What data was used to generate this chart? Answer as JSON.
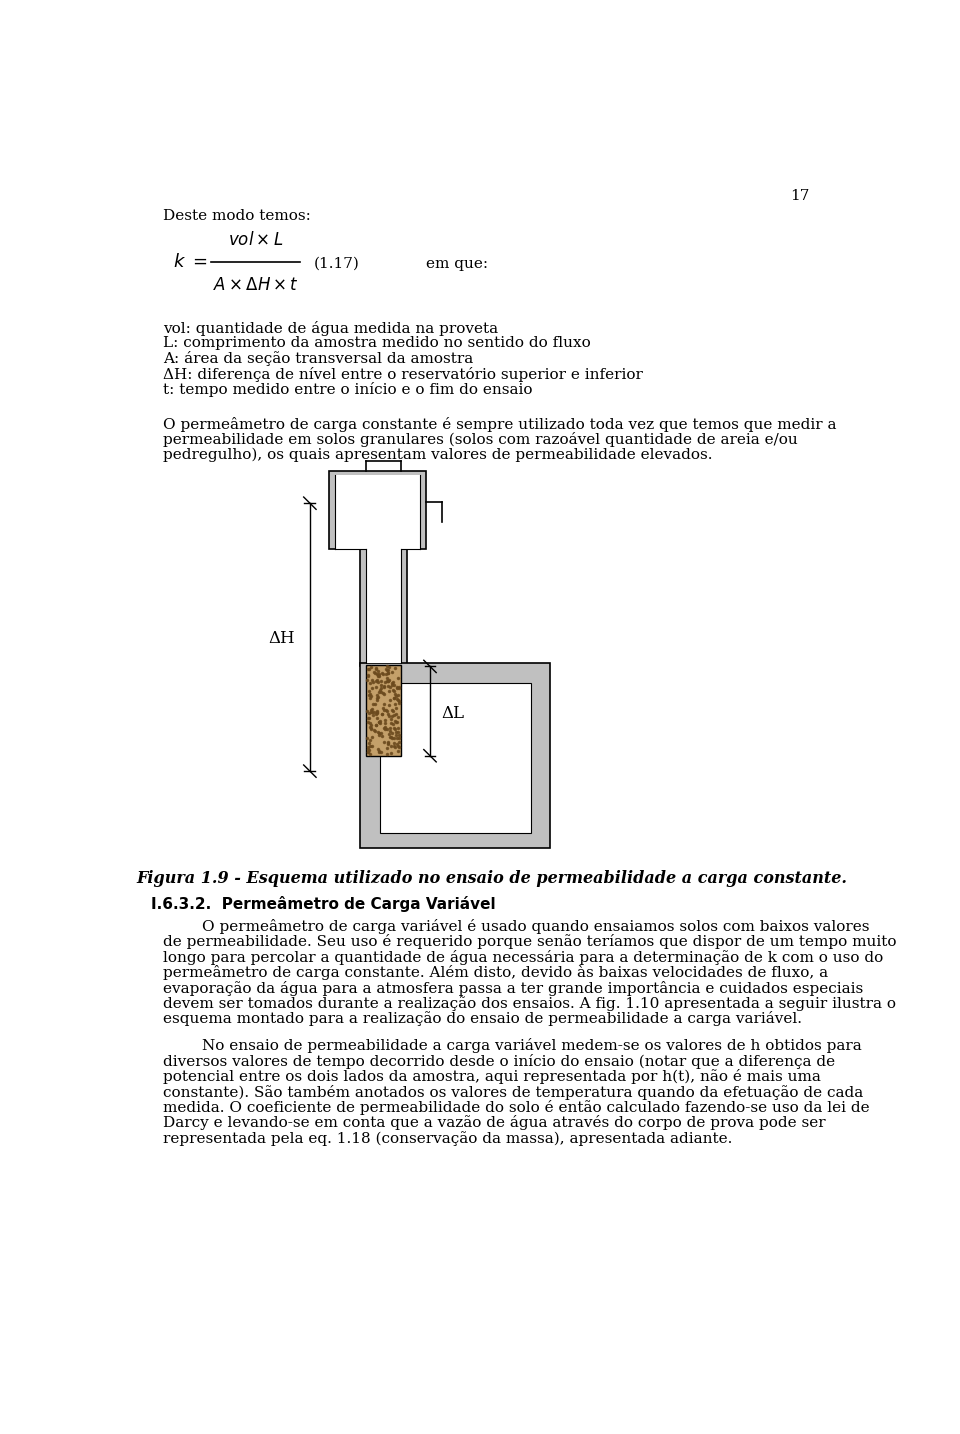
{
  "page_number": "17",
  "bg_color": "#ffffff",
  "text_color": "#000000",
  "fig_width": 9.6,
  "fig_height": 14.34,
  "dpi": 100,
  "bullet_lines": [
    "vol: quantidade de água medida na proveta",
    "L: comprimento da amostra medido no sentido do fluxo",
    "A: área da seção transversal da amostra",
    "ΔH: diferença de nível entre o reservatório superior e inferior",
    "t: tempo medido entre o início e o fim do ensaio"
  ],
  "figure_caption": "Figura 1.9 - Esquema utilizado no ensaio de permeabilidade a carga constante.",
  "section_heading": "I.6.3.2.  Permeâmetro de Carga Variável",
  "gray_color": "#c0c0c0",
  "sand_color": "#c4a06a"
}
